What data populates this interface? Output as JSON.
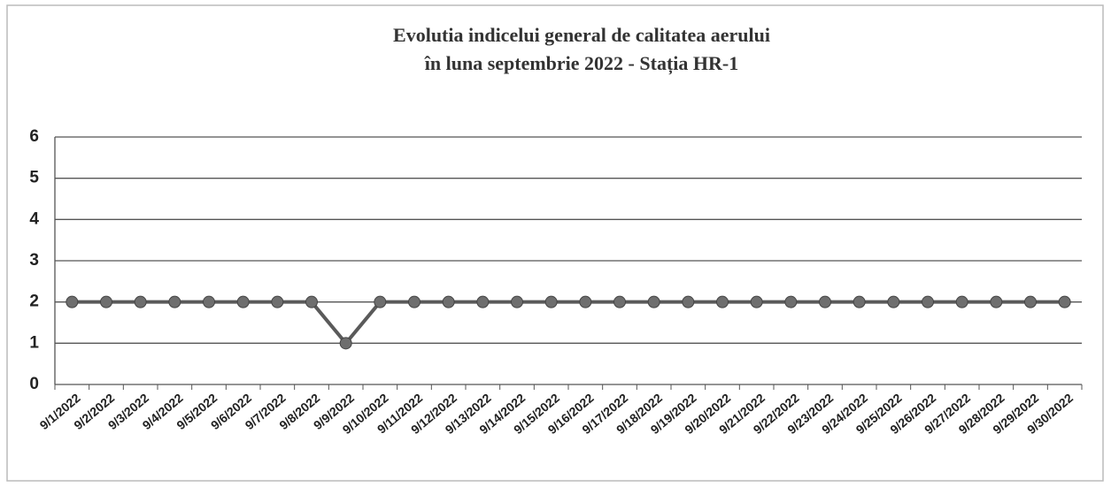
{
  "chart_data": {
    "type": "line",
    "title": [
      "Evolutia indicelui general de calitatea aerului",
      "în luna septembrie  2022 - Stația HR-1"
    ],
    "categories": [
      "9/1/2022",
      "9/2/2022",
      "9/3/2022",
      "9/4/2022",
      "9/5/2022",
      "9/6/2022",
      "9/7/2022",
      "9/8/2022",
      "9/9/2022",
      "9/10/2022",
      "9/11/2022",
      "9/12/2022",
      "9/13/2022",
      "9/14/2022",
      "9/15/2022",
      "9/16/2022",
      "9/17/2022",
      "9/18/2022",
      "9/19/2022",
      "9/20/2022",
      "9/21/2022",
      "9/22/2022",
      "9/23/2022",
      "9/24/2022",
      "9/25/2022",
      "9/26/2022",
      "9/27/2022",
      "9/28/2022",
      "9/29/2022",
      "9/30/2022"
    ],
    "values": [
      2,
      2,
      2,
      2,
      2,
      2,
      2,
      2,
      1,
      2,
      2,
      2,
      2,
      2,
      2,
      2,
      2,
      2,
      2,
      2,
      2,
      2,
      2,
      2,
      2,
      2,
      2,
      2,
      2,
      2
    ],
    "color": "#5a5a5a",
    "marker_color": "#6e6e6e",
    "ylim": [
      0,
      6
    ],
    "yticks": [
      0,
      1,
      2,
      3,
      4,
      5,
      6
    ],
    "grid": true
  }
}
